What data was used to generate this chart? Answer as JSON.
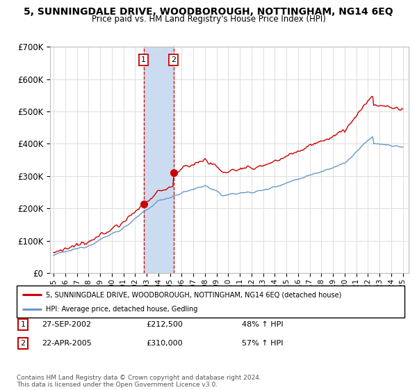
{
  "title": "5, SUNNINGDALE DRIVE, WOODBOROUGH, NOTTINGHAM, NG14 6EQ",
  "subtitle": "Price paid vs. HM Land Registry's House Price Index (HPI)",
  "ylim": [
    0,
    700000
  ],
  "yticks": [
    0,
    100000,
    200000,
    300000,
    400000,
    500000,
    600000,
    700000
  ],
  "ytick_labels": [
    "£0",
    "£100K",
    "£200K",
    "£300K",
    "£400K",
    "£500K",
    "£600K",
    "£700K"
  ],
  "sale1_date_x": 2002.74,
  "sale1_price": 212500,
  "sale1_label": "27-SEP-2002",
  "sale1_pct": "48% ↑ HPI",
  "sale2_date_x": 2005.31,
  "sale2_price": 310000,
  "sale2_label": "22-APR-2005",
  "sale2_pct": "57% ↑ HPI",
  "legend_red": "5, SUNNINGDALE DRIVE, WOODBOROUGH, NOTTINGHAM, NG14 6EQ (detached house)",
  "legend_blue": "HPI: Average price, detached house, Gedling",
  "footnote": "Contains HM Land Registry data © Crown copyright and database right 2024.\nThis data is licensed under the Open Government Licence v3.0.",
  "red_color": "#cc0000",
  "blue_color": "#6699cc",
  "shade_color": "#ccdcf0",
  "grid_color": "#dddddd",
  "background_color": "#ffffff",
  "xmin": 1995,
  "xmax": 2025
}
